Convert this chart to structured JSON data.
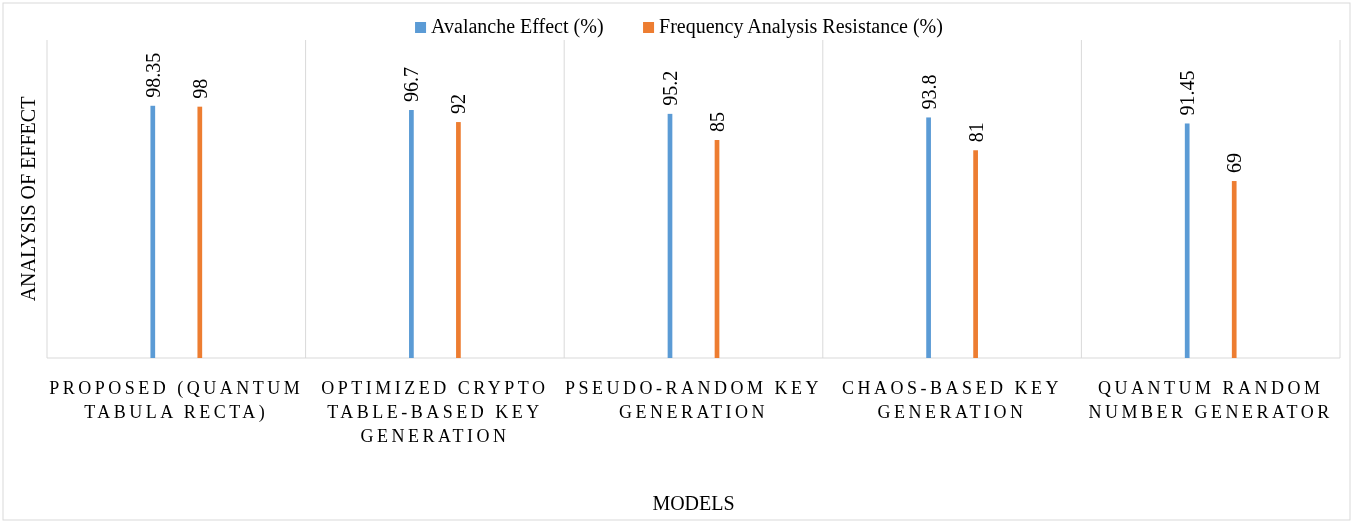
{
  "chart_data": {
    "type": "bar",
    "xlabel": "MODELS",
    "ylabel": "ANALYSIS OF EFFECT",
    "categories": [
      "PROPOSED (QUANTUM TABULA RECTA)",
      "OPTIMIZED CRYPTO TABLE-BASED KEY GENERATION",
      "PSEUDO-RANDOM KEY GENERATION",
      "CHAOS-BASED KEY GENERATION",
      "QUANTUM RANDOM NUMBER GENERATOR"
    ],
    "series": [
      {
        "name": "Avalanche Effect (%)",
        "color": "#5b9bd5",
        "values": [
          98.35,
          96.7,
          95.2,
          93.8,
          91.45
        ]
      },
      {
        "name": "Frequency Analysis Resistance (%)",
        "color": "#ed7d31",
        "values": [
          98,
          92,
          85,
          81,
          69
        ]
      }
    ],
    "ylim": [
      0,
      124
    ],
    "data_labels": true,
    "grid": "x",
    "legend": "top",
    "tick_labels": "x"
  }
}
